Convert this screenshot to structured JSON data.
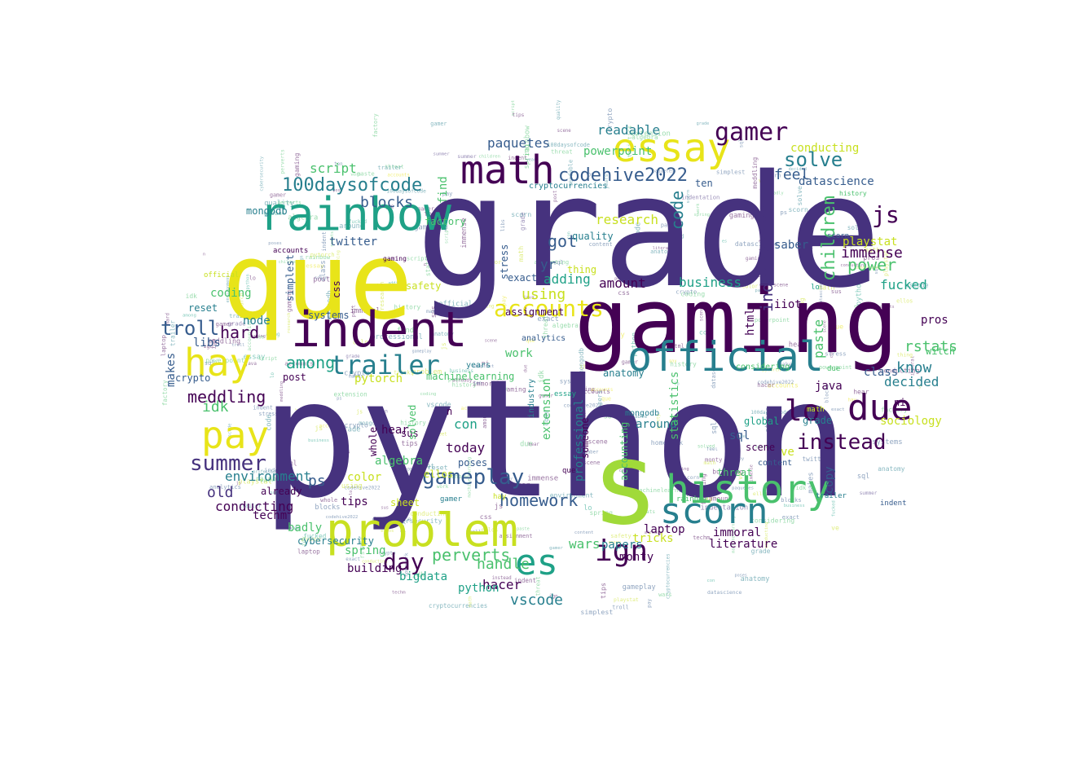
{
  "palette": {
    "deep_purple": "#440154",
    "indigo": "#46327e",
    "blue": "#365c8d",
    "teal": "#277f8e",
    "green_teal": "#1fa187",
    "green": "#4ac16d",
    "lime": "#a0da39",
    "yellow": "#e8e419"
  },
  "words": [
    {
      "text": "python",
      "color": "#46327e"
    },
    {
      "text": "grade",
      "color": "#46327e"
    },
    {
      "text": "gaming",
      "color": "#440154"
    },
    {
      "text": "que",
      "color": "#e8e419"
    },
    {
      "text": "s",
      "color": "#a0da39"
    },
    {
      "text": "essay",
      "color": "#e8e419"
    },
    {
      "text": "rainbow",
      "color": "#1fa187"
    },
    {
      "text": "math",
      "color": "#440154"
    },
    {
      "text": "indent",
      "color": "#440154"
    },
    {
      "text": "official",
      "color": "#277f8e"
    },
    {
      "text": "history",
      "color": "#4ac16d"
    },
    {
      "text": "problem",
      "color": "#c8e020"
    },
    {
      "text": "scorn",
      "color": "#277f8e"
    },
    {
      "text": "due",
      "color": "#440154"
    },
    {
      "text": "hay",
      "color": "#e8e419"
    },
    {
      "text": "pay",
      "color": "#e8e419"
    },
    {
      "text": "es",
      "color": "#1fa187"
    },
    {
      "text": "lo",
      "color": "#440154"
    },
    {
      "text": "trailer",
      "color": "#277f8e"
    },
    {
      "text": "gamer",
      "color": "#440154"
    },
    {
      "text": "accounts",
      "color": "#e8e419"
    },
    {
      "text": "gameplay",
      "color": "#365c8d"
    },
    {
      "text": "codehive2022",
      "color": "#365c8d"
    },
    {
      "text": "100daysofcode",
      "color": "#277f8e"
    },
    {
      "text": "summer",
      "color": "#46327e"
    },
    {
      "text": "day",
      "color": "#440154"
    },
    {
      "text": "ign",
      "color": "#440154"
    },
    {
      "text": "js",
      "color": "#440154"
    },
    {
      "text": "instead",
      "color": "#440154"
    },
    {
      "text": "solve",
      "color": "#277f8e"
    },
    {
      "text": "troll",
      "color": "#365c8d"
    },
    {
      "text": "meddling",
      "color": "#440154"
    },
    {
      "text": "perverts",
      "color": "#4ac16d"
    },
    {
      "text": "homework",
      "color": "#365c8d"
    },
    {
      "text": "indentation",
      "color": "#46327e"
    },
    {
      "text": "children",
      "color": "#4ac16d"
    },
    {
      "text": "readable",
      "color": "#277f8e"
    },
    {
      "text": "paquetes",
      "color": "#365c8d"
    },
    {
      "text": "research",
      "color": "#c8e020"
    },
    {
      "text": "blocks",
      "color": "#365c8d"
    },
    {
      "text": "got",
      "color": "#365c8d"
    },
    {
      "text": "code",
      "color": "#277f8e"
    },
    {
      "text": "feel",
      "color": "#365c8d"
    },
    {
      "text": "amount",
      "color": "#440154"
    },
    {
      "text": "business",
      "color": "#1fa187"
    },
    {
      "text": "power",
      "color": "#4ac16d"
    },
    {
      "text": "immense",
      "color": "#440154"
    },
    {
      "text": "playstat",
      "color": "#c8e020"
    },
    {
      "text": "saber",
      "color": "#365c8d"
    },
    {
      "text": "fucked",
      "color": "#1fa187"
    },
    {
      "text": "know",
      "color": "#277f8e"
    },
    {
      "text": "decided",
      "color": "#277f8e"
    },
    {
      "text": "using",
      "color": "#c8e020"
    },
    {
      "text": "adding",
      "color": "#1fa187"
    },
    {
      "text": "yr",
      "color": "#365c8d"
    },
    {
      "text": "wars",
      "color": "#4ac16d"
    },
    {
      "text": "handle",
      "color": "#4ac16d"
    },
    {
      "text": "hacer",
      "color": "#440154"
    },
    {
      "text": "vscode",
      "color": "#277f8e"
    },
    {
      "text": "papers",
      "color": "#277f8e"
    },
    {
      "text": "monty",
      "color": "#440154"
    },
    {
      "text": "literature",
      "color": "#440154"
    },
    {
      "text": "immoral",
      "color": "#440154"
    },
    {
      "text": "laptop",
      "color": "#440154"
    },
    {
      "text": "copy",
      "color": "#365c8d"
    },
    {
      "text": "ve",
      "color": "#c8e020"
    },
    {
      "text": "scene",
      "color": "#440154"
    },
    {
      "text": "sql",
      "color": "#365c8d"
    },
    {
      "text": "global",
      "color": "#1fa187"
    },
    {
      "text": "sociology",
      "color": "#c8e020"
    },
    {
      "text": "class",
      "color": "#365c8d"
    },
    {
      "text": "java",
      "color": "#440154"
    },
    {
      "text": "around",
      "color": "#277f8e"
    },
    {
      "text": "mongodb",
      "color": "#277f8e"
    },
    {
      "text": "statistics",
      "color": "#4ac16d"
    },
    {
      "text": "accounting",
      "color": "#4ac16d"
    },
    {
      "text": "anatomy",
      "color": "#277f8e"
    },
    {
      "text": "assignment",
      "color": "#440154"
    },
    {
      "text": "analytics",
      "color": "#365c8d"
    },
    {
      "text": "work",
      "color": "#4ac16d"
    },
    {
      "text": "exact",
      "color": "#365c8d"
    },
    {
      "text": "today",
      "color": "#440154"
    },
    {
      "text": "con",
      "color": "#1fa187"
    },
    {
      "text": "n",
      "color": "#440154"
    },
    {
      "text": "years",
      "color": "#277f8e"
    },
    {
      "text": "algebra",
      "color": "#4ac16d"
    },
    {
      "text": "tips",
      "color": "#440154"
    },
    {
      "text": "post",
      "color": "#440154"
    },
    {
      "text": "hear",
      "color": "#440154"
    },
    {
      "text": "crypto",
      "color": "#365c8d"
    },
    {
      "text": "idk",
      "color": "#4ac16d"
    },
    {
      "text": "among",
      "color": "#1fa187"
    },
    {
      "text": "hard",
      "color": "#440154"
    },
    {
      "text": "libs",
      "color": "#365c8d"
    },
    {
      "text": "node",
      "color": "#277f8e"
    },
    {
      "text": "reset",
      "color": "#277f8e"
    },
    {
      "text": "coding",
      "color": "#4ac16d"
    },
    {
      "text": "makes",
      "color": "#365c8d"
    },
    {
      "text": "old",
      "color": "#46327e"
    },
    {
      "text": "environment",
      "color": "#277f8e"
    },
    {
      "text": "conducting",
      "color": "#440154"
    },
    {
      "text": "techm",
      "color": "#440154"
    },
    {
      "text": "already",
      "color": "#440154"
    },
    {
      "text": "badly",
      "color": "#4ac16d"
    },
    {
      "text": "ps",
      "color": "#365c8d"
    },
    {
      "text": "script",
      "color": "#4ac16d"
    },
    {
      "text": "mongodb",
      "color": "#277f8e"
    },
    {
      "text": "twitter",
      "color": "#365c8d"
    },
    {
      "text": "simplest",
      "color": "#365c8d"
    },
    {
      "text": "color",
      "color": "#c8e020"
    },
    {
      "text": "pytorch",
      "color": "#c8e020"
    },
    {
      "text": "machinelearning",
      "color": "#4ac16d"
    },
    {
      "text": "sus",
      "color": "#440154"
    },
    {
      "text": "whole",
      "color": "#440154"
    },
    {
      "text": "find",
      "color": "#4ac16d"
    },
    {
      "text": "professional",
      "color": "#277f8e"
    },
    {
      "text": "extension",
      "color": "#4ac16d"
    },
    {
      "text": "someone",
      "color": "#440154"
    },
    {
      "text": "poses",
      "color": "#365c8d"
    },
    {
      "text": "ellos",
      "color": "#c8e020"
    },
    {
      "text": "ni",
      "color": "#440154"
    },
    {
      "text": "rstats",
      "color": "#4ac16d"
    },
    {
      "text": "python",
      "color": "#1fa187"
    },
    {
      "text": "tricks",
      "color": "#c8e020"
    },
    {
      "text": "spring",
      "color": "#4ac16d"
    },
    {
      "text": "building",
      "color": "#440154"
    },
    {
      "text": "bigdata",
      "color": "#1fa187"
    },
    {
      "text": "sheet",
      "color": "#c8e020"
    },
    {
      "text": "cybersecurity",
      "color": "#277f8e"
    },
    {
      "text": "systems",
      "color": "#365c8d"
    },
    {
      "text": "css",
      "color": "#440154"
    },
    {
      "text": "factory",
      "color": "#4ac16d"
    },
    {
      "text": "paste",
      "color": "#4ac16d"
    },
    {
      "text": "html",
      "color": "#440154"
    },
    {
      "text": "quality",
      "color": "#277f8e"
    },
    {
      "text": "thing",
      "color": "#c8e020"
    },
    {
      "text": "powerpoint",
      "color": "#4ac16d"
    },
    {
      "text": "conducting",
      "color": "#c8e020"
    },
    {
      "text": "datascience",
      "color": "#365c8d"
    },
    {
      "text": "cryptocurrencies",
      "color": "#277f8e"
    },
    {
      "text": "stress",
      "color": "#365c8d"
    },
    {
      "text": "considering",
      "color": "#4ac16d"
    },
    {
      "text": "industry",
      "color": "#277f8e"
    },
    {
      "text": "safety",
      "color": "#c8e020"
    },
    {
      "text": "content",
      "color": "#365c8d"
    },
    {
      "text": "witch",
      "color": "#4ac16d"
    },
    {
      "text": "pros",
      "color": "#440154"
    },
    {
      "text": "iiot",
      "color": "#440154"
    },
    {
      "text": "solved",
      "color": "#4ac16d"
    },
    {
      "text": "ten",
      "color": "#365c8d"
    },
    {
      "text": "threat",
      "color": "#4ac16d"
    },
    {
      "text": "grade",
      "color": "#277f8e"
    },
    {
      "text": "gaming",
      "color": "#440154"
    },
    {
      "text": "essay",
      "color": "#1fa187"
    },
    {
      "text": "history",
      "color": "#4ac16d"
    },
    {
      "text": "rainbow",
      "color": "#4ac16d"
    },
    {
      "text": "scorn",
      "color": "#365c8d"
    },
    {
      "text": "official",
      "color": "#c8e020"
    },
    {
      "text": "trailer",
      "color": "#277f8e"
    },
    {
      "text": "accounts",
      "color": "#440154"
    },
    {
      "text": "hay",
      "color": "#c8e020"
    },
    {
      "text": "que",
      "color": "#440154"
    },
    {
      "text": "math",
      "color": "#c8e020"
    },
    {
      "text": "due",
      "color": "#4ac16d"
    },
    {
      "text": "indent",
      "color": "#365c8d"
    },
    {
      "text": "gamer",
      "color": "#277f8e"
    },
    {
      "text": "lo",
      "color": "#1fa187"
    },
    {
      "text": "es",
      "color": "#4ac16d"
    },
    {
      "text": "pay",
      "color": "#365c8d"
    },
    {
      "text": "js",
      "color": "#c8e020"
    },
    {
      "text": "ign",
      "color": "#277f8e"
    }
  ]
}
